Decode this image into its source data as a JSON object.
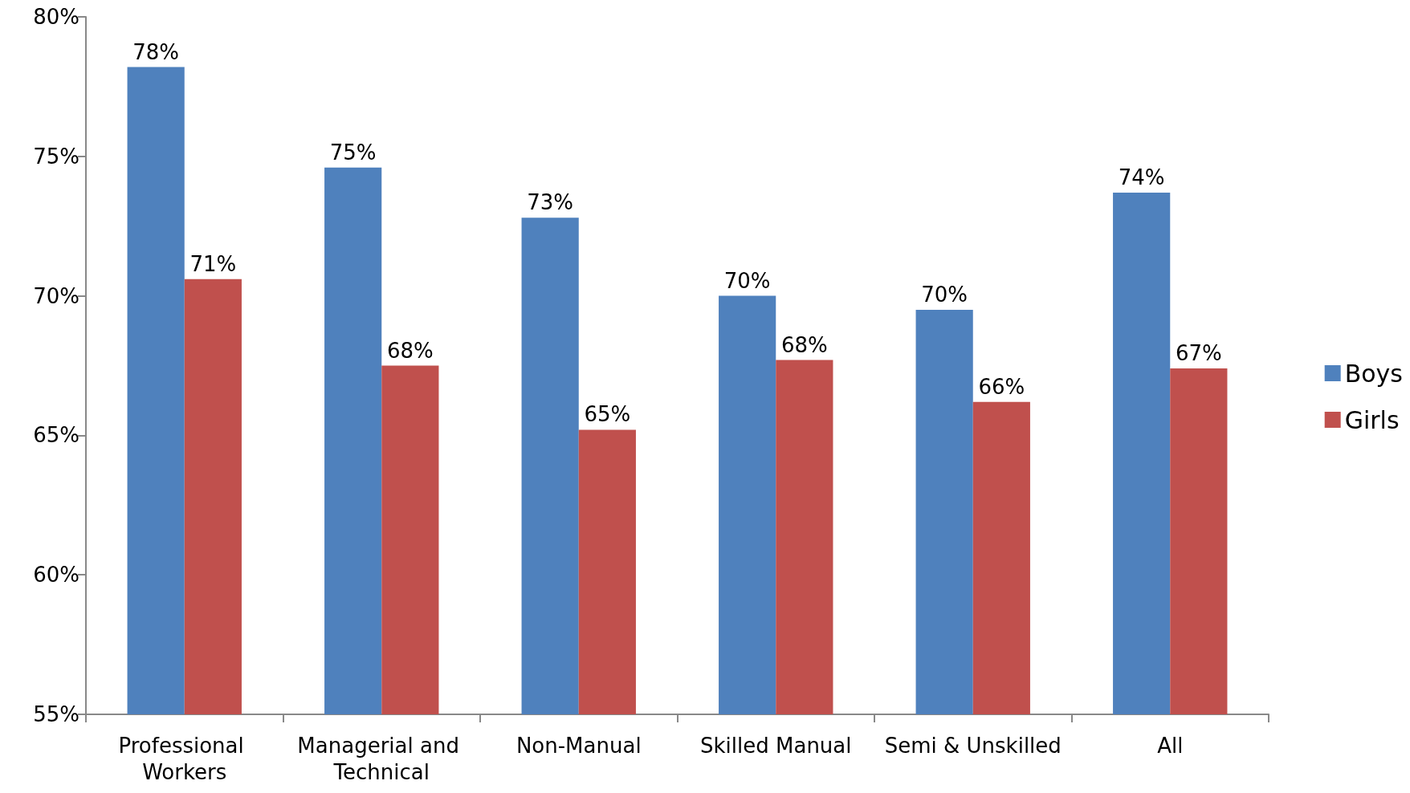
{
  "chart_data": {
    "type": "bar",
    "categories": [
      "Professional Workers",
      "Managerial and Technical",
      "Non-Manual",
      "Skilled Manual",
      "Semi & Unskilled",
      "All"
    ],
    "series": [
      {
        "name": "Boys",
        "color": "#4f81bd",
        "values": [
          78.2,
          74.6,
          72.8,
          70.0,
          69.5,
          73.7
        ],
        "value_labels": [
          "78%",
          "75%",
          "73%",
          "70%",
          "70%",
          "74%"
        ]
      },
      {
        "name": "Girls",
        "color": "#c0504d",
        "values": [
          70.6,
          67.5,
          65.2,
          67.7,
          66.2,
          67.4
        ],
        "value_labels": [
          "71%",
          "68%",
          "65%",
          "68%",
          "66%",
          "67%"
        ]
      }
    ],
    "ylim": [
      55,
      80
    ],
    "yticks": [
      {
        "value": 55,
        "label": "55%"
      },
      {
        "value": 60,
        "label": "60%"
      },
      {
        "value": 65,
        "label": "65%"
      },
      {
        "value": 70,
        "label": "70%"
      },
      {
        "value": 75,
        "label": "75%"
      },
      {
        "value": 80,
        "label": "80%"
      }
    ],
    "grid": false,
    "legend": "right"
  }
}
